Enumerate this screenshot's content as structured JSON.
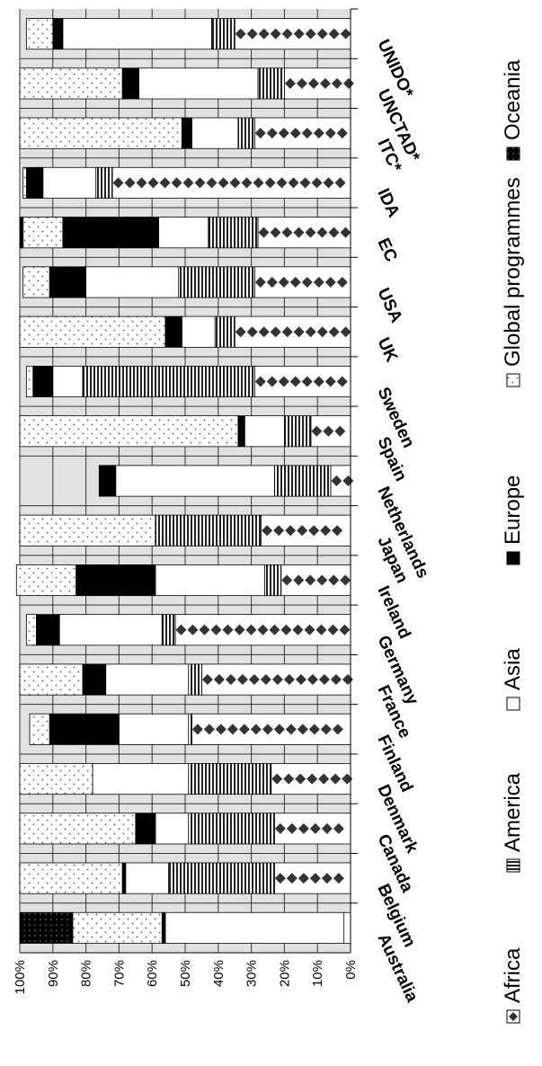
{
  "chart_data": {
    "type": "bar",
    "orientation": "horizontal-stacked-100",
    "title": "",
    "xlabel": "",
    "ylabel": "",
    "ylim": [
      0,
      100
    ],
    "ticks": [
      "0%",
      "10%",
      "20%",
      "30%",
      "40%",
      "50%",
      "60%",
      "70%",
      "80%",
      "90%",
      "100%"
    ],
    "grid": true,
    "legend_position": "right",
    "categories": [
      "Australia",
      "Belgium",
      "Canada",
      "Denmark",
      "Finland",
      "France",
      "Germany",
      "Ireland",
      "Japan",
      "Netherlands",
      "Spain",
      "Sweden",
      "UK",
      "USA",
      "EC",
      "IDA",
      "ITC*",
      "UNCTAD*",
      "UNIDO*"
    ],
    "series": [
      {
        "name": "Africa",
        "pattern": "africa",
        "values": [
          2,
          23,
          23,
          24,
          48,
          45,
          53,
          21,
          27,
          6,
          12,
          29,
          35,
          29,
          28,
          72,
          29,
          20,
          35
        ]
      },
      {
        "name": "America",
        "pattern": "america",
        "values": [
          0,
          32,
          26,
          25,
          1,
          4,
          4,
          5,
          32,
          17,
          8,
          52,
          6,
          23,
          15,
          5,
          5,
          8,
          7
        ]
      },
      {
        "name": "Asia",
        "pattern": "asia",
        "values": [
          54,
          13,
          10,
          29,
          21,
          25,
          31,
          33,
          0,
          48,
          12,
          9,
          10,
          28,
          15,
          16,
          14,
          36,
          45
        ]
      },
      {
        "name": "Europe",
        "pattern": "europe",
        "values": [
          1,
          1,
          6,
          0,
          21,
          7,
          7,
          24,
          0,
          5,
          2,
          6,
          5,
          11,
          29,
          5,
          3,
          5,
          3
        ]
      },
      {
        "name": "Global programmes",
        "pattern": "global",
        "values": [
          27,
          31,
          35,
          22,
          6,
          19,
          3,
          18,
          41,
          0,
          66,
          2,
          44,
          8,
          12,
          1,
          49,
          31,
          8
        ]
      },
      {
        "name": "Oceania",
        "pattern": "oceania",
        "values": [
          16,
          0,
          0,
          0,
          0,
          0,
          0,
          0,
          0,
          0,
          0,
          0,
          0,
          0,
          1,
          0,
          0,
          0,
          0
        ]
      }
    ],
    "legend": [
      {
        "label": "Africa",
        "pattern": "africa"
      },
      {
        "label": "America",
        "pattern": "america"
      },
      {
        "label": "Asia",
        "pattern": "asia"
      },
      {
        "label": "Europe",
        "pattern": "europe"
      },
      {
        "label": "Global programmes",
        "pattern": "global"
      },
      {
        "label": "Oceania",
        "pattern": "oceania"
      }
    ]
  }
}
